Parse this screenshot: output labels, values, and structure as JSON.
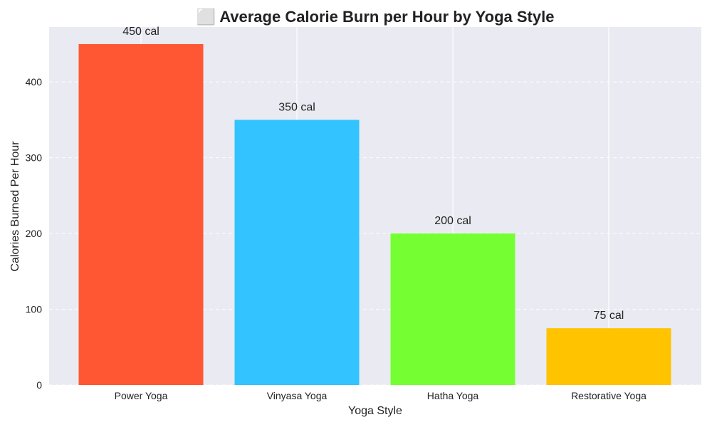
{
  "chart_data": {
    "type": "bar",
    "title": "⬜ Average Calorie Burn per Hour by Yoga Style",
    "xlabel": "Yoga Style",
    "ylabel": "Calories Burned Per Hour",
    "categories": [
      "Power Yoga",
      "Vinyasa Yoga",
      "Hatha Yoga",
      "Restorative Yoga"
    ],
    "values": [
      450,
      350,
      200,
      75
    ],
    "data_labels": [
      "450 cal",
      "350 cal",
      "200 cal",
      "75 cal"
    ],
    "colors": [
      "#FF5733",
      "#33C3FF",
      "#75FF33",
      "#FFC300"
    ],
    "ylim": [
      0,
      472.5
    ],
    "yticks": [
      0,
      100,
      200,
      300,
      400
    ],
    "ytick_labels": [
      "0",
      "100",
      "200",
      "300",
      "400"
    ],
    "grid": true,
    "grid_style": "y-dashed",
    "background": "#EAEAF2"
  }
}
